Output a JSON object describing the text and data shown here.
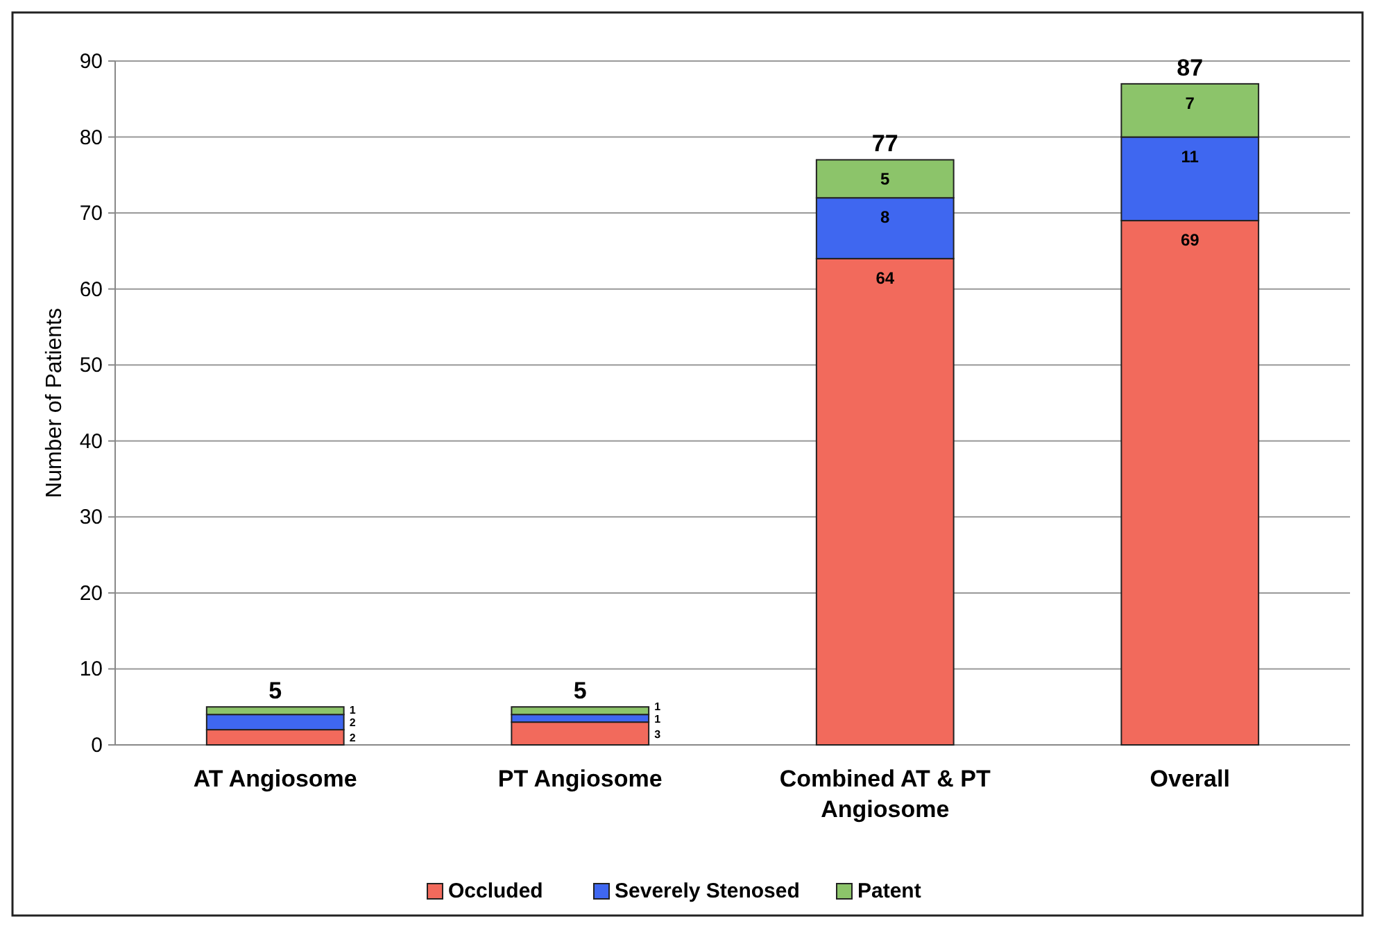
{
  "chart_data": {
    "type": "bar",
    "stacked": true,
    "ylabel": "Number of Patients",
    "categories": [
      "AT Angiosome",
      "PT Angiosome",
      "Combined AT & PT Angiosome",
      "Overall"
    ],
    "series": [
      {
        "name": "Occluded",
        "color": "#f26a5c",
        "values": [
          2,
          3,
          64,
          69
        ]
      },
      {
        "name": "Severely Stenosed",
        "color": "#3f67f0",
        "values": [
          2,
          1,
          8,
          11
        ]
      },
      {
        "name": "Patent",
        "color": "#8cc46a",
        "values": [
          1,
          1,
          5,
          7
        ]
      }
    ],
    "ylim": [
      0,
      90
    ],
    "yticks": [
      0,
      10,
      20,
      30,
      40,
      50,
      60,
      70,
      80,
      90
    ],
    "grid": "y",
    "legend": "bottom",
    "data_labels": true,
    "totals": [
      "5",
      "5",
      "77",
      "87"
    ]
  }
}
